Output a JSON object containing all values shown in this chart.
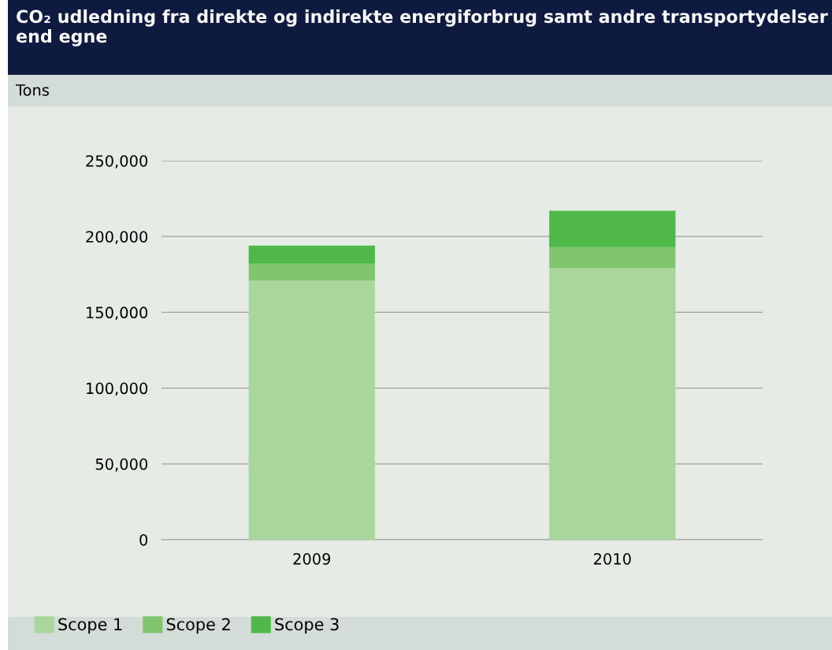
{
  "chart_data": {
    "type": "bar",
    "stacked": true,
    "title": "CO₂ udledning fra direkte og indirekte energiforbrug samt andre transportydelser end egne",
    "ylabel": "Tons",
    "categories": [
      "2009",
      "2010"
    ],
    "series": [
      {
        "name": "Scope 1",
        "color": "#a9d69b",
        "values": [
          171000,
          179000
        ]
      },
      {
        "name": "Scope 2",
        "color": "#7fc66f",
        "values": [
          11000,
          14000
        ]
      },
      {
        "name": "Scope 3",
        "color": "#4fb848",
        "values": [
          12000,
          24000
        ]
      }
    ],
    "ylim": [
      0,
      250000
    ],
    "yticks": [
      {
        "value": 0,
        "label": "0"
      },
      {
        "value": 50000,
        "label": "50,000"
      },
      {
        "value": 100000,
        "label": "100,000"
      },
      {
        "value": 150000,
        "label": "150,000"
      },
      {
        "value": 200000,
        "label": "200,000"
      },
      {
        "value": 250000,
        "label": "250,000"
      }
    ],
    "grid": "y",
    "legend": "bottom"
  }
}
